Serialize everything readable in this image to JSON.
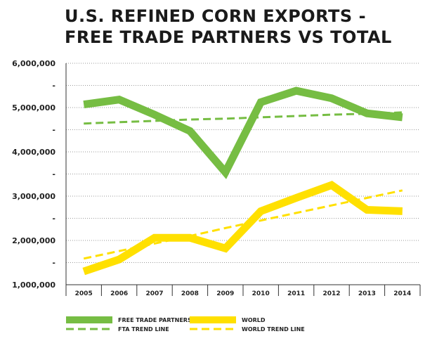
{
  "chart_data": {
    "type": "line",
    "title": "U.S. REFINED CORN EXPORTS -\nFREE TRADE PARTNERS VS TOTAL",
    "x": [
      "2005",
      "2006",
      "2007",
      "2008",
      "2009",
      "2010",
      "2011",
      "2012",
      "2013",
      "2014"
    ],
    "y_ticks": [
      "6,000,000",
      "-",
      "5,000,000",
      "-",
      "4,000,000",
      "-",
      "3,000,000",
      "-",
      "2,000,000",
      "-",
      "1,000,000"
    ],
    "ylim": [
      1000000,
      6000000
    ],
    "grid": "horizontal-dotted",
    "legend_position": "bottom",
    "series": [
      {
        "name": "FREE TRADE PARTNERS",
        "color": "#76bd43",
        "style": "solid",
        "values": [
          5070000,
          5180000,
          4840000,
          4470000,
          3540000,
          5120000,
          5380000,
          5210000,
          4870000,
          4780000
        ]
      },
      {
        "name": "WORLD",
        "color": "#ffe000",
        "style": "solid",
        "values": [
          1300000,
          1570000,
          2060000,
          2060000,
          1820000,
          2660000,
          2960000,
          3250000,
          2690000,
          2660000
        ]
      },
      {
        "name": "FTA TREND LINE",
        "color": "#76bd43",
        "style": "dashed",
        "values": [
          4640000,
          4670000,
          4700000,
          4730000,
          4750000,
          4780000,
          4810000,
          4840000,
          4860000,
          4890000
        ]
      },
      {
        "name": "WORLD TREND LINE",
        "color": "#ffe000",
        "style": "dashed",
        "values": [
          1590000,
          1760000,
          1930000,
          2100000,
          2280000,
          2450000,
          2620000,
          2790000,
          2960000,
          3130000
        ]
      }
    ]
  }
}
